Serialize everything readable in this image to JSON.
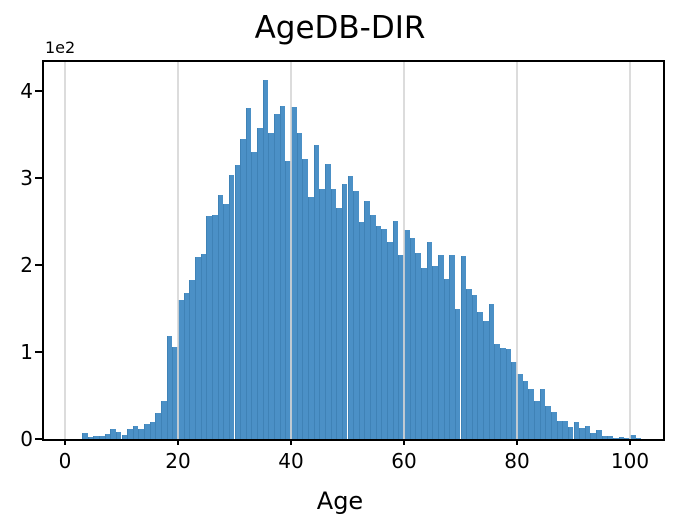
{
  "title": "AgeDB-DIR",
  "axes": {
    "xlabel": "Age",
    "offset_text": "1e2",
    "x_ticks": [
      0,
      20,
      40,
      60,
      80,
      100
    ],
    "y_ticks": [
      0,
      1,
      2,
      3,
      4
    ]
  },
  "colors": {
    "bar_fill": "#4b90c6",
    "bar_edge": "#3f82b6",
    "grid": "#d6d6d6",
    "axis": "#000000"
  },
  "chart_data": {
    "type": "bar",
    "subtype": "histogram",
    "title": "AgeDB-DIR",
    "xlabel": "Age",
    "ylabel": "",
    "y_offset_factor": "1e2",
    "bin_width": 1,
    "xlim": [
      -4,
      106
    ],
    "ylim": [
      0,
      434
    ],
    "grid": "vertical gridlines at x ticks, drawn over bars",
    "legend": "none",
    "ages": [
      3,
      4,
      5,
      6,
      7,
      8,
      9,
      10,
      11,
      12,
      13,
      14,
      15,
      16,
      17,
      18,
      19,
      20,
      21,
      22,
      23,
      24,
      25,
      26,
      27,
      28,
      29,
      30,
      31,
      32,
      33,
      34,
      35,
      36,
      37,
      38,
      39,
      40,
      41,
      42,
      43,
      44,
      45,
      46,
      47,
      48,
      49,
      50,
      51,
      52,
      53,
      54,
      55,
      56,
      57,
      58,
      59,
      60,
      61,
      62,
      63,
      64,
      65,
      66,
      67,
      68,
      69,
      70,
      71,
      72,
      73,
      74,
      75,
      76,
      77,
      78,
      79,
      80,
      81,
      82,
      83,
      84,
      85,
      86,
      87,
      88,
      89,
      90,
      91,
      92,
      93,
      94,
      95,
      96,
      97,
      98,
      99,
      100,
      101
    ],
    "values": [
      7,
      2,
      3,
      4,
      6,
      11,
      8,
      5,
      12,
      15,
      12,
      17,
      19,
      30,
      44,
      118,
      106,
      160,
      168,
      183,
      209,
      213,
      256,
      258,
      281,
      270,
      303,
      315,
      345,
      380,
      330,
      358,
      413,
      352,
      374,
      383,
      320,
      382,
      352,
      322,
      278,
      338,
      287,
      316,
      287,
      266,
      293,
      302,
      285,
      249,
      274,
      258,
      245,
      241,
      226,
      251,
      212,
      240,
      231,
      214,
      196,
      226,
      199,
      211,
      184,
      211,
      150,
      210,
      172,
      165,
      146,
      136,
      155,
      109,
      105,
      103,
      88,
      75,
      67,
      58,
      44,
      57,
      38,
      31,
      21,
      21,
      14,
      19,
      13,
      15,
      7,
      10,
      4,
      3,
      1,
      2,
      1,
      5,
      1
    ]
  }
}
